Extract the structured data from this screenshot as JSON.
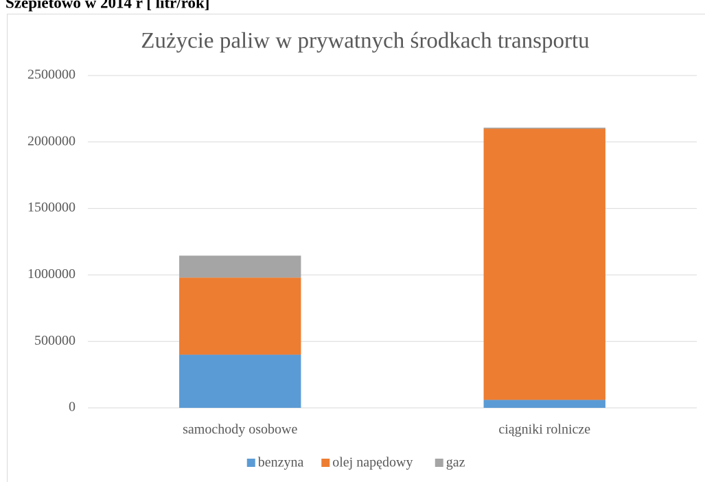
{
  "heading": "Szepietowo w 2014 r [ litr/rok]",
  "chart_data": {
    "type": "stacked_bar",
    "title": "Zużycie paliw w prywatnych środkach transportu",
    "categories": [
      "samochody osobowe",
      "ciągniki rolnicze"
    ],
    "series": [
      {
        "name": "benzyna",
        "color": "#5b9bd5",
        "values": [
          400000,
          60000
        ]
      },
      {
        "name": "olej napędowy",
        "color": "#ed7d31",
        "values": [
          580000,
          2040000
        ]
      },
      {
        "name": "gaz",
        "color": "#a5a5a5",
        "values": [
          165000,
          8000
        ]
      }
    ],
    "ylim": [
      0,
      2500000
    ],
    "yticks": [
      0,
      500000,
      1000000,
      1500000,
      2000000,
      2500000
    ],
    "grid": true,
    "legend": "bottom"
  }
}
